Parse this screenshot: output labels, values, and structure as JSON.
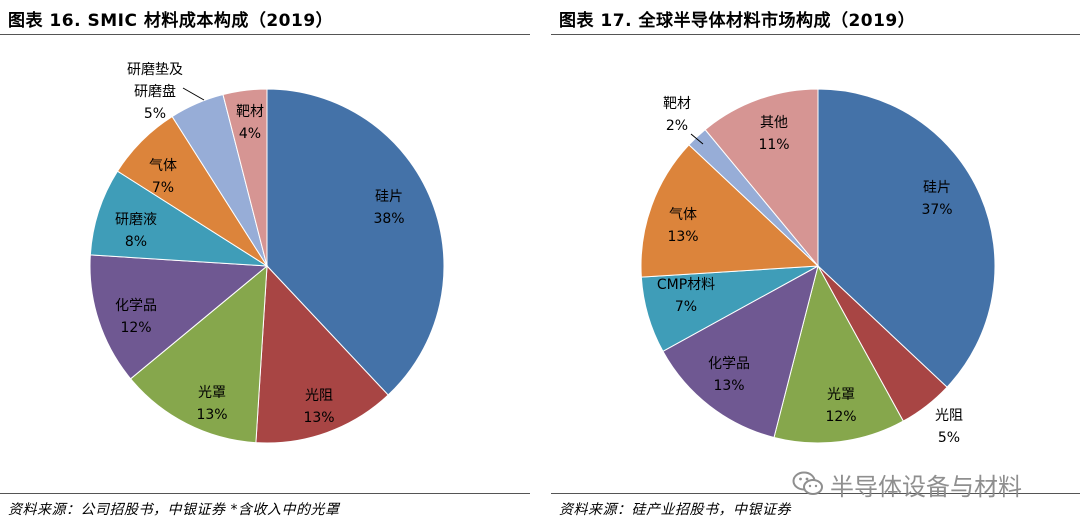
{
  "chart_data": [
    {
      "type": "pie",
      "title": "图表 16. SMIC 材料成本构成（2019）",
      "slices": [
        {
          "name": "硅片",
          "value": 38,
          "label": "38%",
          "color": "#4472a8"
        },
        {
          "name": "光阻",
          "value": 13,
          "label": "13%",
          "color": "#a84544"
        },
        {
          "name": "光罩",
          "value": 13,
          "label": "13%",
          "color": "#86a74c"
        },
        {
          "name": "化学品",
          "value": 12,
          "label": "12%",
          "color": "#6f5892"
        },
        {
          "name": "研磨液",
          "value": 8,
          "label": "8%",
          "color": "#3f9db8"
        },
        {
          "name": "气体",
          "value": 7,
          "label": "7%",
          "color": "#dc843b"
        },
        {
          "name": "研磨垫及研磨盘",
          "value": 5,
          "label": "5%",
          "color": "#97add7"
        },
        {
          "name": "靶材",
          "value": 4,
          "label": "4%",
          "color": "#d69593"
        }
      ],
      "source": "资料来源：公司招股书，中银证券 *含收入中的光罩"
    },
    {
      "type": "pie",
      "title": "图表 17. 全球半导体材料市场构成（2019）",
      "slices": [
        {
          "name": "硅片",
          "value": 37,
          "label": "37%",
          "color": "#4472a8"
        },
        {
          "name": "光阻",
          "value": 5,
          "label": "5%",
          "color": "#a84544"
        },
        {
          "name": "光罩",
          "value": 12,
          "label": "12%",
          "color": "#86a74c"
        },
        {
          "name": "化学品",
          "value": 13,
          "label": "13%",
          "color": "#6f5892"
        },
        {
          "name": "CMP材料",
          "value": 7,
          "label": "7%",
          "color": "#3f9db8"
        },
        {
          "name": "气体",
          "value": 13,
          "label": "13%",
          "color": "#dc843b"
        },
        {
          "name": "靶材",
          "value": 2,
          "label": "2%",
          "color": "#97add7"
        },
        {
          "name": "其他",
          "value": 11,
          "label": "11%",
          "color": "#d69593"
        }
      ],
      "source": "资料来源：硅产业招股书，中银证券"
    }
  ],
  "watermark": {
    "text": "半导体设备与材料",
    "icon": "wechat-icon"
  }
}
